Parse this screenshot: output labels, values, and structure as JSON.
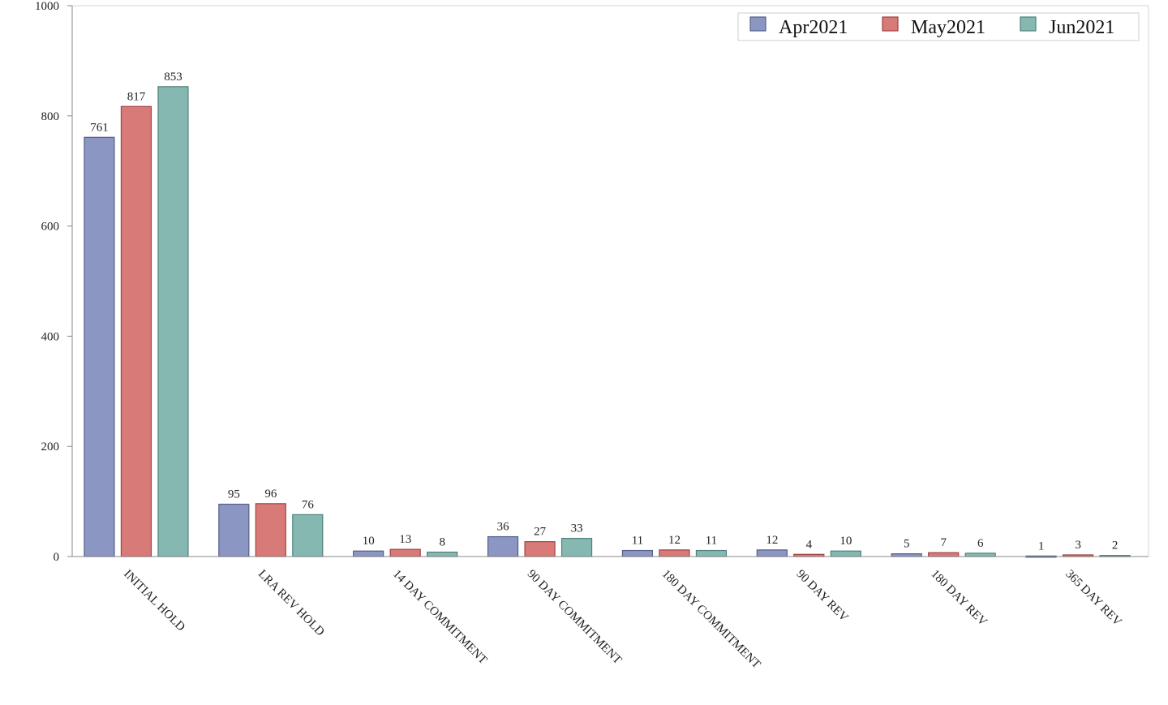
{
  "chart_data": {
    "type": "bar",
    "categories": [
      "INITIAL HOLD",
      "LRA REV HOLD",
      "14 DAY COMMITMENT",
      "90 DAY COMMITMENT",
      "180 DAY COMMITMENT",
      "90 DAY REV",
      "180 DAY REV",
      "365 DAY REV"
    ],
    "series": [
      {
        "name": "Apr2021",
        "color": "#8b96c3",
        "values": [
          761,
          95,
          10,
          36,
          11,
          12,
          5,
          1
        ]
      },
      {
        "name": "May2021",
        "color": "#d87a78",
        "values": [
          817,
          96,
          13,
          27,
          12,
          4,
          7,
          3
        ]
      },
      {
        "name": "Jun2021",
        "color": "#85b8b1",
        "values": [
          853,
          76,
          8,
          33,
          11,
          10,
          6,
          2
        ]
      }
    ],
    "title": "",
    "xlabel": "",
    "ylabel": "",
    "ylim": [
      0,
      1000
    ],
    "yticks": [
      0,
      200,
      400,
      600,
      800,
      1000
    ],
    "legend_position": "top-right",
    "grid": false,
    "data_labels": true
  }
}
